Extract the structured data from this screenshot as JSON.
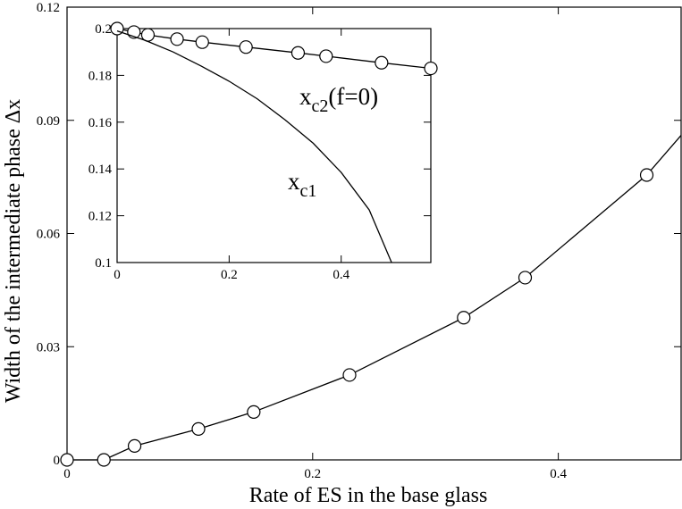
{
  "chart_data": [
    {
      "type": "line",
      "xlabel": "Rate of ES in the base glass",
      "ylabel": "Width of the intermediate phase Δx",
      "xlim": [
        0,
        0.5
      ],
      "ylim": [
        0,
        0.12
      ],
      "xticks": [
        0,
        0.2,
        0.4
      ],
      "xtick_labels": [
        "0",
        "0.2",
        "0.4"
      ],
      "yticks": [
        0,
        0.03,
        0.06,
        0.09,
        0.12
      ],
      "ytick_labels": [
        "0",
        "0.03",
        "0.06",
        "0.09",
        "0.12"
      ],
      "grid": false,
      "series": [
        {
          "x": [
            0,
            0.03,
            0.055,
            0.107,
            0.152,
            0.23,
            0.323,
            0.373,
            0.472,
            0.5
          ],
          "y": [
            0,
            0,
            0.0037,
            0.0082,
            0.0127,
            0.0225,
            0.0377,
            0.0483,
            0.0755,
            0.086
          ],
          "marker": [
            true,
            true,
            true,
            true,
            true,
            true,
            true,
            true,
            true,
            false
          ]
        }
      ]
    },
    {
      "type": "line",
      "xlim": [
        0,
        0.56
      ],
      "ylim": [
        0.1,
        0.2
      ],
      "xticks": [
        0,
        0.2,
        0.4
      ],
      "xtick_labels": [
        "0",
        "0.2",
        "0.4"
      ],
      "yticks": [
        0.1,
        0.12,
        0.14,
        0.16,
        0.18,
        0.2
      ],
      "ytick_labels": [
        "0.1",
        "0.12",
        "0.14",
        "0.16",
        "0.18",
        "0.2"
      ],
      "grid": false,
      "annotations": [
        {
          "base": "x",
          "sub": "c2",
          "rest": "(f=0)"
        },
        {
          "base": "x",
          "sub": "c1",
          "rest": ""
        }
      ],
      "series": [
        {
          "name": "x_c2(f=0)",
          "x": [
            0,
            0.03,
            0.055,
            0.107,
            0.152,
            0.23,
            0.323,
            0.373,
            0.472,
            0.56
          ],
          "y": [
            0.2,
            0.1985,
            0.1973,
            0.1955,
            0.1942,
            0.1921,
            0.1896,
            0.1882,
            0.1854,
            0.183
          ],
          "marker": [
            true,
            true,
            true,
            true,
            true,
            true,
            true,
            true,
            true,
            true
          ]
        },
        {
          "name": "x_c1",
          "x": [
            0,
            0.05,
            0.1,
            0.15,
            0.2,
            0.25,
            0.3,
            0.35,
            0.4,
            0.45,
            0.49
          ],
          "y": [
            0.199,
            0.195,
            0.19,
            0.184,
            0.1775,
            0.17,
            0.161,
            0.151,
            0.1385,
            0.1225,
            0.1
          ]
        }
      ]
    }
  ]
}
